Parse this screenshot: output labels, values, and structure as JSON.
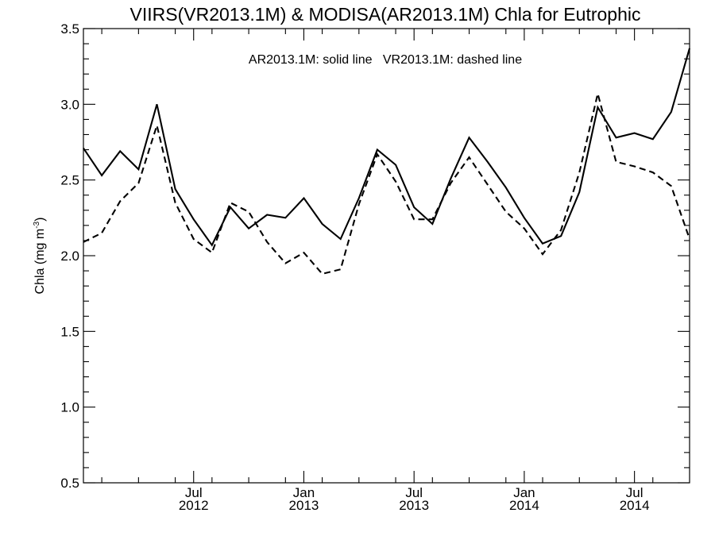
{
  "chart_data": {
    "type": "line",
    "title": "VIIRS(VR2013.1M) & MODISA(AR2013.1M)  Chla for Eutrophic",
    "annotation": "AR2013.1M: solid line   VR2013.1M: dashed line",
    "ylabel": "Chla (mg m",
    "ylabel_sup": "-3",
    "ylabel_close": ")",
    "ylim": [
      0.5,
      3.5
    ],
    "yticks": [
      "0.5",
      "1.0",
      "1.5",
      "2.0",
      "2.5",
      "3.0",
      "3.5"
    ],
    "xlim": [
      "2012-01",
      "2014-10"
    ],
    "xticks": [
      {
        "x": "2012-07",
        "month": "Jul",
        "year": "2012"
      },
      {
        "x": "2013-01",
        "month": "Jan",
        "year": "2013"
      },
      {
        "x": "2013-07",
        "month": "Jul",
        "year": "2013"
      },
      {
        "x": "2014-01",
        "month": "Jan",
        "year": "2014"
      },
      {
        "x": "2014-07",
        "month": "Jul",
        "year": "2014"
      }
    ],
    "grid": false,
    "x": [
      "2012-01",
      "2012-02",
      "2012-03",
      "2012-04",
      "2012-05",
      "2012-06",
      "2012-07",
      "2012-08",
      "2012-09",
      "2012-10",
      "2012-11",
      "2012-12",
      "2013-01",
      "2013-02",
      "2013-03",
      "2013-04",
      "2013-05",
      "2013-06",
      "2013-07",
      "2013-08",
      "2013-09",
      "2013-10",
      "2013-11",
      "2013-12",
      "2014-01",
      "2014-02",
      "2014-03",
      "2014-04",
      "2014-05",
      "2014-06",
      "2014-07",
      "2014-08",
      "2014-09",
      "2014-10"
    ],
    "series": [
      {
        "style": "solid",
        "values": [
          2.71,
          2.53,
          2.69,
          2.57,
          3.0,
          2.44,
          2.24,
          2.07,
          2.32,
          2.18,
          2.27,
          2.25,
          2.38,
          2.21,
          2.11,
          2.38,
          2.7,
          2.6,
          2.32,
          2.21,
          2.51,
          2.78,
          2.62,
          2.45,
          2.25,
          2.08,
          2.13,
          2.42,
          2.98,
          2.78,
          2.81,
          2.77,
          2.95,
          3.37
        ]
      },
      {
        "style": "dashed",
        "values": [
          2.09,
          2.15,
          2.36,
          2.48,
          2.86,
          2.35,
          2.11,
          2.02,
          2.35,
          2.29,
          2.09,
          1.95,
          2.02,
          1.88,
          1.91,
          2.34,
          2.67,
          2.49,
          2.24,
          2.24,
          2.48,
          2.65,
          2.47,
          2.29,
          2.18,
          2.01,
          2.17,
          2.55,
          3.07,
          2.62,
          2.59,
          2.55,
          2.46,
          2.11
        ]
      }
    ]
  }
}
